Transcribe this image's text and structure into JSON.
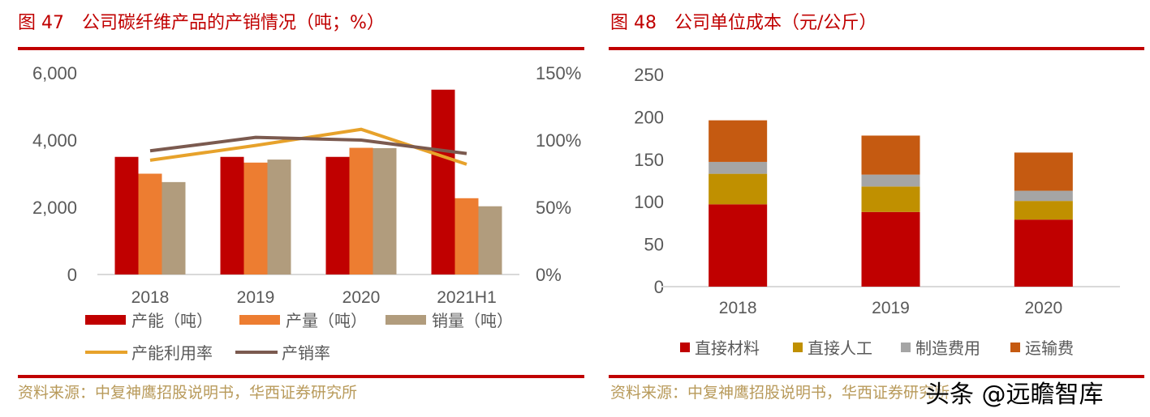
{
  "left": {
    "title": "图 47　公司碳纤维产品的产销情况（吨；%）",
    "source": "资料来源：中复神鹰招股说明书，华西证券研究所"
  },
  "right": {
    "title": "图 48　公司单位成本（元/公斤）",
    "source": "资料来源：中复神鹰招股说明书，华西证券研究所"
  },
  "watermark": "头条 @远瞻智库",
  "chart_data": [
    {
      "type": "bar+line",
      "categories": [
        "2018",
        "2019",
        "2020",
        "2021H1"
      ],
      "ylim": [
        0,
        6000
      ],
      "yticks": [
        "0",
        "2,000",
        "4,000",
        "6,000"
      ],
      "y2lim": [
        0,
        150
      ],
      "y2ticks": [
        "0%",
        "50%",
        "100%",
        "150%"
      ],
      "grid": false,
      "legend": "bottom",
      "series": [
        {
          "name": "产能（吨）",
          "type": "bar",
          "axis": "left",
          "color": "#c00000",
          "values": [
            3500,
            3500,
            3500,
            5500
          ]
        },
        {
          "name": "产量（吨）",
          "type": "bar",
          "axis": "left",
          "color": "#ed7d31",
          "values": [
            3000,
            3330,
            3770,
            2270
          ]
        },
        {
          "name": "销量（吨）",
          "type": "bar",
          "axis": "left",
          "color": "#b19c7d",
          "values": [
            2750,
            3420,
            3760,
            2030
          ]
        },
        {
          "name": "产能利用率",
          "type": "line",
          "axis": "right",
          "color": "#e7a22b",
          "values": [
            85,
            96,
            108,
            82
          ]
        },
        {
          "name": "产销率",
          "type": "line",
          "axis": "right",
          "color": "#7b5a4f",
          "values": [
            92,
            102,
            100,
            90
          ]
        }
      ]
    },
    {
      "type": "stacked-bar",
      "categories": [
        "2018",
        "2019",
        "2020"
      ],
      "ylim": [
        0,
        250
      ],
      "yticks": [
        "0",
        "50",
        "100",
        "150",
        "200",
        "250"
      ],
      "grid": false,
      "legend": "bottom",
      "series": [
        {
          "name": "直接材料",
          "color": "#c00000",
          "values": [
            97,
            88,
            79
          ]
        },
        {
          "name": "直接人工",
          "color": "#c09000",
          "values": [
            36,
            30,
            22
          ]
        },
        {
          "name": "制造费用",
          "color": "#a5a5a5",
          "values": [
            14,
            14,
            12
          ]
        },
        {
          "name": "运输费",
          "color": "#c55a11",
          "values": [
            49,
            46,
            45
          ]
        }
      ]
    }
  ]
}
